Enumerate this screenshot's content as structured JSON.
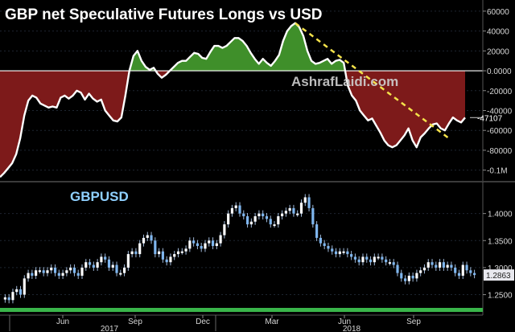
{
  "colors": {
    "background": "#000000",
    "positive_fill": "#3f8f2a",
    "negative_fill": "#7d1a1a",
    "line": "#ffffff",
    "trend": "#f4e24a",
    "candle_up": "#ffffff",
    "candle_down": "#7fb6ee",
    "axis_text": "#d8d8d8",
    "price_tag_bg": "#e8e8ee",
    "baseline_bar": "#39b54a"
  },
  "watermark": "AshrafLaidi.com",
  "chart_data": [
    {
      "type": "area",
      "title": "GBP net Speculative Futures Longs vs USD",
      "ylim": [
        -110000,
        68000
      ],
      "y_ticks": [
        60000,
        40000,
        20000,
        0,
        -20000,
        -40000,
        -60000,
        -80000,
        -100000
      ],
      "y_tick_labels": [
        "60000",
        "40000",
        "20000",
        "0.0000",
        "-20000",
        "-40000",
        "-60000",
        "-80000",
        "-0.1M"
      ],
      "last_value_label": "-47107",
      "series": [
        {
          "values": [
            -107000,
            -103000,
            -98000,
            -93000,
            -84000,
            -68000,
            -45000,
            -30000,
            -25000,
            -27000,
            -33000,
            -35000,
            -37000,
            -36000,
            -37000,
            -27000,
            -25000,
            -28000,
            -25000,
            -20000,
            -22000,
            -29000,
            -23000,
            -28000,
            -31000,
            -29000,
            -40000,
            -45000,
            -50000,
            -51000,
            -47000,
            -25000,
            0,
            15000,
            20000,
            10000,
            4000,
            1000,
            3000,
            -3000,
            -7000,
            -4000,
            0,
            4000,
            8000,
            10000,
            10000,
            14000,
            18000,
            17000,
            13000,
            12000,
            19000,
            25000,
            25000,
            23000,
            25000,
            29000,
            33000,
            33000,
            30000,
            25000,
            18000,
            12000,
            7000,
            12000,
            8000,
            5000,
            10000,
            16000,
            30000,
            40000,
            45000,
            48000,
            44000,
            35000,
            20000,
            10000,
            7000,
            8000,
            10000,
            12000,
            7000,
            10000,
            11000,
            8000,
            -15000,
            -25000,
            -30000,
            -40000,
            -45000,
            -50000,
            -48000,
            -55000,
            -62000,
            -70000,
            -75000,
            -77000,
            -75000,
            -70000,
            -65000,
            -58000,
            -70000,
            -77000,
            -67000,
            -63000,
            -58000,
            -54000,
            -53000,
            -58000,
            -60000,
            -53000,
            -47000,
            -50000,
            -52000,
            -47107
          ]
        }
      ],
      "trendline": {
        "from": [
          73,
          48000
        ],
        "to": [
          111,
          -68000
        ]
      }
    },
    {
      "type": "candlestick",
      "title": "GBPUSD",
      "ylim": [
        1.23,
        1.45
      ],
      "y_ticks": [
        1.25,
        1.3,
        1.35,
        1.4
      ],
      "y_tick_labels": [
        "1.2500",
        "1.3000",
        "1.3500",
        "1.4000"
      ],
      "last_price_label": "1.2863",
      "x_month_labels": [
        "Jun",
        "Sep",
        "Dec",
        "Mar",
        "Jun",
        "Sep"
      ],
      "x_year_labels": [
        "2017",
        "2018"
      ],
      "closes": [
        1.245,
        1.24,
        1.255,
        1.26,
        1.25,
        1.28,
        1.29,
        1.285,
        1.295,
        1.295,
        1.29,
        1.295,
        1.3,
        1.29,
        1.285,
        1.29,
        1.295,
        1.3,
        1.29,
        1.285,
        1.3,
        1.31,
        1.305,
        1.3,
        1.31,
        1.32,
        1.315,
        1.3,
        1.305,
        1.29,
        1.29,
        1.3,
        1.325,
        1.33,
        1.325,
        1.345,
        1.355,
        1.36,
        1.35,
        1.325,
        1.33,
        1.315,
        1.31,
        1.32,
        1.325,
        1.33,
        1.33,
        1.335,
        1.35,
        1.345,
        1.34,
        1.335,
        1.345,
        1.35,
        1.34,
        1.345,
        1.36,
        1.38,
        1.4,
        1.41,
        1.415,
        1.4,
        1.395,
        1.38,
        1.385,
        1.395,
        1.4,
        1.395,
        1.39,
        1.38,
        1.38,
        1.395,
        1.4,
        1.405,
        1.41,
        1.4,
        1.4,
        1.42,
        1.43,
        1.41,
        1.38,
        1.355,
        1.345,
        1.34,
        1.335,
        1.33,
        1.325,
        1.33,
        1.33,
        1.325,
        1.32,
        1.315,
        1.31,
        1.32,
        1.315,
        1.31,
        1.32,
        1.32,
        1.315,
        1.31,
        1.31,
        1.305,
        1.29,
        1.28,
        1.275,
        1.285,
        1.28,
        1.29,
        1.295,
        1.3,
        1.31,
        1.305,
        1.3,
        1.31,
        1.3,
        1.305,
        1.3,
        1.29,
        1.285,
        1.305,
        1.295,
        1.29,
        1.2863
      ]
    }
  ]
}
